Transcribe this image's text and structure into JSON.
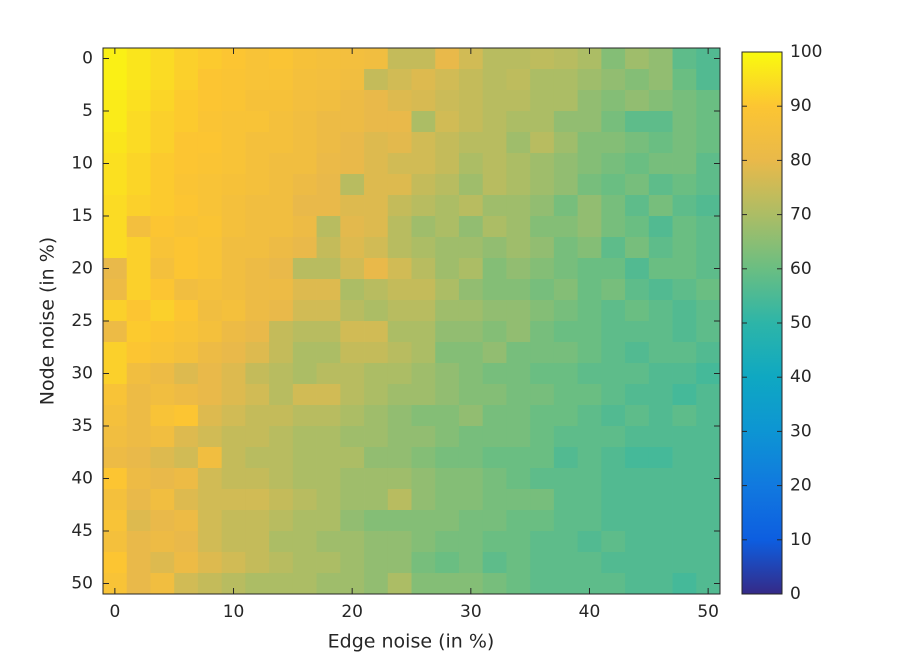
{
  "chart_data": {
    "type": "heatmap",
    "xlabel": "Edge noise (in %)",
    "ylabel": "Node noise (in %)",
    "x": [
      0,
      2,
      4,
      6,
      8,
      10,
      12,
      14,
      16,
      18,
      20,
      22,
      24,
      26,
      28,
      30,
      32,
      34,
      36,
      38,
      40,
      42,
      44,
      46,
      48,
      50
    ],
    "y": [
      0,
      2,
      4,
      6,
      8,
      10,
      12,
      14,
      16,
      18,
      20,
      22,
      24,
      26,
      28,
      30,
      32,
      34,
      36,
      38,
      40,
      42,
      44,
      46,
      48,
      50
    ],
    "z": [
      [
        98,
        96,
        94,
        92,
        91,
        90,
        88,
        89,
        87,
        86,
        85,
        84,
        74,
        74,
        80,
        76,
        72,
        72,
        73,
        72,
        70,
        64,
        68,
        66,
        58,
        56
      ],
      [
        98,
        96,
        94,
        92,
        90,
        89,
        88,
        88,
        86,
        85,
        84,
        74,
        76,
        78,
        76,
        74,
        72,
        73,
        70,
        70,
        68,
        66,
        64,
        66,
        60,
        56
      ],
      [
        97,
        95,
        93,
        91,
        90,
        89,
        87,
        87,
        85,
        84,
        82,
        80,
        78,
        77,
        75,
        74,
        72,
        72,
        70,
        70,
        66,
        64,
        66,
        64,
        62,
        60
      ],
      [
        97,
        94,
        92,
        91,
        89,
        88,
        88,
        86,
        84,
        82,
        82,
        80,
        80,
        70,
        76,
        74,
        72,
        70,
        70,
        66,
        66,
        62,
        58,
        58,
        62,
        60
      ],
      [
        96,
        94,
        92,
        90,
        90,
        88,
        86,
        86,
        84,
        82,
        80,
        78,
        79,
        76,
        74,
        72,
        72,
        68,
        72,
        68,
        64,
        64,
        62,
        60,
        62,
        60
      ],
      [
        95,
        93,
        91,
        90,
        89,
        88,
        86,
        84,
        84,
        81,
        80,
        78,
        76,
        76,
        74,
        70,
        72,
        70,
        68,
        66,
        64,
        62,
        60,
        62,
        62,
        58
      ],
      [
        95,
        93,
        91,
        89,
        88,
        87,
        86,
        84,
        82,
        80,
        72,
        78,
        78,
        74,
        72,
        68,
        72,
        70,
        68,
        66,
        62,
        60,
        62,
        58,
        60,
        58
      ],
      [
        94,
        92,
        91,
        90,
        88,
        86,
        84,
        84,
        80,
        80,
        78,
        78,
        74,
        72,
        70,
        72,
        68,
        68,
        66,
        62,
        66,
        62,
        58,
        62,
        58,
        56
      ],
      [
        94,
        85,
        90,
        88,
        89,
        86,
        84,
        84,
        82,
        72,
        79,
        78,
        72,
        68,
        70,
        66,
        70,
        68,
        64,
        64,
        66,
        62,
        60,
        56,
        60,
        58
      ],
      [
        94,
        92,
        88,
        90,
        88,
        84,
        84,
        82,
        80,
        74,
        78,
        76,
        72,
        70,
        68,
        68,
        66,
        68,
        66,
        62,
        64,
        58,
        62,
        58,
        60,
        58
      ],
      [
        80,
        92,
        86,
        90,
        88,
        84,
        82,
        80,
        72,
        72,
        76,
        80,
        76,
        72,
        68,
        70,
        64,
        66,
        64,
        62,
        60,
        60,
        56,
        60,
        60,
        58
      ],
      [
        82,
        92,
        90,
        84,
        86,
        84,
        82,
        82,
        78,
        78,
        70,
        72,
        74,
        74,
        70,
        66,
        64,
        64,
        62,
        64,
        60,
        62,
        58,
        56,
        58,
        60
      ],
      [
        92,
        90,
        92,
        90,
        84,
        86,
        82,
        80,
        76,
        76,
        72,
        70,
        72,
        72,
        68,
        68,
        66,
        66,
        64,
        62,
        60,
        58,
        60,
        58,
        56,
        58
      ],
      [
        82,
        91,
        90,
        88,
        86,
        82,
        80,
        74,
        72,
        72,
        76,
        76,
        70,
        70,
        66,
        66,
        64,
        66,
        62,
        60,
        60,
        58,
        58,
        58,
        56,
        58
      ],
      [
        92,
        90,
        88,
        86,
        82,
        80,
        78,
        74,
        70,
        70,
        74,
        74,
        72,
        70,
        64,
        64,
        66,
        62,
        62,
        62,
        60,
        58,
        56,
        58,
        58,
        56
      ],
      [
        92,
        84,
        82,
        78,
        80,
        78,
        74,
        72,
        70,
        72,
        72,
        70,
        70,
        68,
        66,
        64,
        62,
        62,
        60,
        60,
        58,
        58,
        58,
        56,
        56,
        54
      ],
      [
        88,
        82,
        84,
        82,
        80,
        78,
        76,
        72,
        76,
        76,
        72,
        70,
        68,
        68,
        66,
        64,
        64,
        62,
        62,
        60,
        60,
        58,
        56,
        56,
        54,
        56
      ],
      [
        86,
        82,
        88,
        90,
        78,
        76,
        74,
        74,
        72,
        72,
        70,
        68,
        66,
        64,
        64,
        66,
        62,
        62,
        60,
        60,
        58,
        56,
        58,
        56,
        58,
        56
      ],
      [
        84,
        82,
        84,
        78,
        76,
        74,
        74,
        72,
        70,
        70,
        68,
        68,
        66,
        66,
        64,
        62,
        62,
        62,
        60,
        58,
        58,
        58,
        56,
        56,
        56,
        56
      ],
      [
        82,
        80,
        78,
        76,
        84,
        74,
        72,
        72,
        70,
        70,
        70,
        66,
        66,
        64,
        62,
        62,
        60,
        60,
        60,
        56,
        58,
        56,
        54,
        54,
        56,
        56
      ],
      [
        90,
        82,
        80,
        82,
        76,
        74,
        74,
        72,
        70,
        70,
        68,
        68,
        68,
        66,
        64,
        64,
        62,
        60,
        58,
        58,
        58,
        56,
        56,
        56,
        56,
        56
      ],
      [
        86,
        80,
        84,
        78,
        76,
        76,
        76,
        74,
        72,
        70,
        68,
        68,
        72,
        66,
        64,
        64,
        62,
        62,
        62,
        58,
        58,
        56,
        56,
        56,
        56,
        56
      ],
      [
        88,
        78,
        80,
        82,
        76,
        74,
        74,
        72,
        70,
        70,
        66,
        64,
        64,
        64,
        64,
        62,
        62,
        60,
        60,
        58,
        58,
        56,
        56,
        56,
        56,
        56
      ],
      [
        86,
        80,
        82,
        80,
        76,
        74,
        74,
        70,
        70,
        68,
        68,
        66,
        66,
        64,
        62,
        62,
        60,
        60,
        58,
        58,
        56,
        58,
        56,
        56,
        56,
        56
      ],
      [
        90,
        80,
        78,
        82,
        78,
        76,
        74,
        72,
        70,
        70,
        68,
        66,
        66,
        62,
        60,
        62,
        58,
        60,
        58,
        58,
        58,
        56,
        56,
        56,
        56,
        56
      ],
      [
        88,
        80,
        84,
        76,
        74,
        72,
        70,
        70,
        70,
        68,
        68,
        66,
        70,
        64,
        64,
        64,
        62,
        60,
        58,
        58,
        58,
        58,
        56,
        56,
        54,
        56
      ]
    ],
    "xlim": [
      -1,
      51
    ],
    "ylim": [
      -1,
      51
    ],
    "y_reversed": true,
    "xticks": [
      0,
      10,
      20,
      30,
      40,
      50
    ],
    "yticks": [
      0,
      5,
      10,
      15,
      20,
      25,
      30,
      35,
      40,
      45,
      50
    ],
    "colormap": "parula",
    "clim": [
      0,
      100
    ],
    "cticks": [
      0,
      10,
      20,
      30,
      40,
      50,
      60,
      70,
      80,
      90,
      100
    ]
  }
}
